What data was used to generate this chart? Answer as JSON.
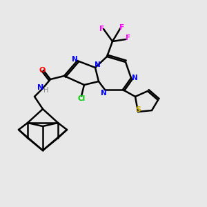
{
  "bg_color": "#e8e8e8",
  "bond_color": "#000000",
  "bond_width": 1.8,
  "atom_colors": {
    "N": "#0000ff",
    "O": "#ff0000",
    "Cl": "#00cc00",
    "S": "#ccaa00",
    "F": "#ff00ff",
    "H": "#888888",
    "C": "#000000"
  }
}
